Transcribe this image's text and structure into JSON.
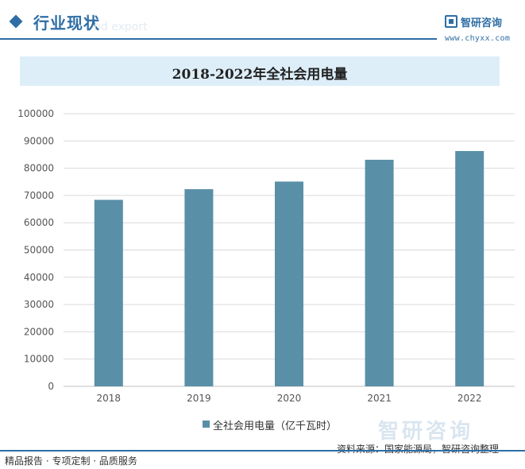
{
  "header": {
    "section_title": "行业现状",
    "section_subtitle": "nd export",
    "brand_name": "智研咨询",
    "brand_url": "www.chyxx.com"
  },
  "chart_data": {
    "type": "bar",
    "title": "2018-2022年全社会用电量",
    "categories": [
      "2018",
      "2019",
      "2020",
      "2021",
      "2022"
    ],
    "series": [
      {
        "name": "全社会用电量（亿千瓦时）",
        "values": [
          68400,
          72300,
          75100,
          83100,
          86300
        ]
      }
    ],
    "ylim": [
      0,
      100000
    ],
    "yticks": [
      0,
      10000,
      20000,
      30000,
      40000,
      50000,
      60000,
      70000,
      80000,
      90000,
      100000
    ],
    "grid": true,
    "legend_position": "bottom",
    "bar_color": "#5a8fa8"
  },
  "footer": {
    "left": "精品报告 · 专项定制 · 品质服务",
    "source": "资料来源：国家能源局，智研咨询整理",
    "watermark": "智研咨询"
  }
}
